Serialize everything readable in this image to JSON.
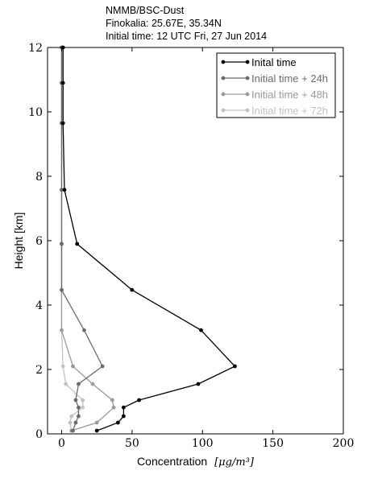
{
  "header": {
    "line1": "NMMB/BSC-Dust",
    "line2": "Finokalia: 25.67E, 35.34N",
    "line3": "Initial time: 12 UTC Fri, 27 Jun 2014"
  },
  "chart_data": {
    "type": "line",
    "title": "",
    "xlabel": "Concentration",
    "xlabel_unit": "[μg/m³]",
    "ylabel": "Height [km]",
    "xlim": [
      -10,
      200
    ],
    "ylim": [
      0,
      12
    ],
    "xticks": [
      0,
      50,
      100,
      150,
      200
    ],
    "yticks": [
      0,
      2,
      4,
      6,
      8,
      10,
      12
    ],
    "grid": false,
    "legend_position": "top-right",
    "series": [
      {
        "name": "Inital time",
        "color": "#000000",
        "points": [
          [
            25,
            0.1
          ],
          [
            40,
            0.35
          ],
          [
            44,
            0.55
          ],
          [
            44,
            0.82
          ],
          [
            55,
            1.05
          ],
          [
            97,
            1.55
          ],
          [
            123,
            2.1
          ],
          [
            99,
            3.22
          ],
          [
            50,
            4.47
          ],
          [
            11,
            5.9
          ],
          [
            2,
            7.58
          ],
          [
            1,
            9.65
          ],
          [
            1,
            10.9
          ],
          [
            1,
            12.0
          ]
        ]
      },
      {
        "name": "Initial time + 24h",
        "color": "#6b6b6b",
        "points": [
          [
            8,
            0.1
          ],
          [
            10,
            0.35
          ],
          [
            12,
            0.55
          ],
          [
            12,
            0.82
          ],
          [
            10,
            1.05
          ],
          [
            12,
            1.55
          ],
          [
            29,
            2.1
          ],
          [
            16,
            3.22
          ],
          [
            0,
            4.47
          ],
          [
            0,
            5.9
          ],
          [
            0,
            7.58
          ],
          [
            0,
            9.65
          ],
          [
            0,
            10.9
          ],
          [
            0,
            12.0
          ]
        ]
      },
      {
        "name": "Initial time + 48h",
        "color": "#9a9a9a",
        "points": [
          [
            7,
            0.1
          ],
          [
            25,
            0.35
          ],
          [
            37,
            0.82
          ],
          [
            36,
            1.05
          ],
          [
            22,
            1.55
          ],
          [
            8,
            2.1
          ],
          [
            0,
            3.22
          ],
          [
            0,
            4.47
          ],
          [
            0,
            5.9
          ],
          [
            0,
            7.58
          ],
          [
            0,
            9.65
          ],
          [
            0,
            10.9
          ],
          [
            0,
            12.0
          ]
        ]
      },
      {
        "name": "Initial time + 72h",
        "color": "#c2c2c2",
        "points": [
          [
            7,
            0.1
          ],
          [
            6,
            0.35
          ],
          [
            7,
            0.55
          ],
          [
            15,
            0.82
          ],
          [
            15,
            1.05
          ],
          [
            3,
            1.55
          ],
          [
            1,
            2.1
          ],
          [
            0,
            3.22
          ],
          [
            0,
            4.47
          ],
          [
            0,
            5.9
          ],
          [
            0,
            7.58
          ],
          [
            0,
            9.65
          ],
          [
            0,
            10.9
          ],
          [
            0,
            12.0
          ]
        ]
      }
    ]
  }
}
